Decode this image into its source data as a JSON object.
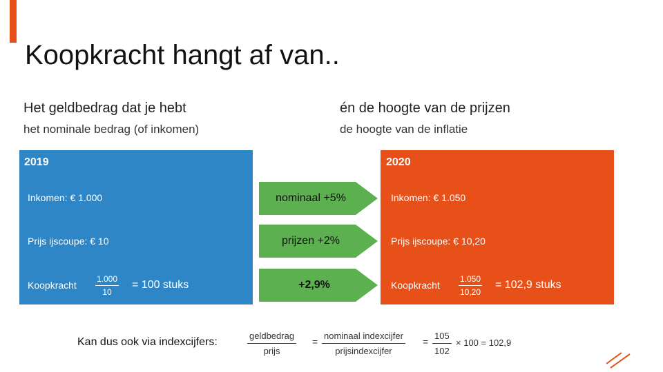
{
  "title": "Koopkracht hangt af van..",
  "left": {
    "heading": "Het geldbedrag dat je hebt",
    "subheading": "het nominale bedrag (of inkomen)"
  },
  "right": {
    "heading": "én de hoogte van de prijzen",
    "subheading": "de hoogte van de inflatie"
  },
  "box_2019": {
    "year": "2019",
    "income": "Inkomen: € 1.000",
    "price": "Prijs ijscoupe: € 10",
    "label": "Koopkracht",
    "numerator": "1.000",
    "denominator": "10",
    "result": "= 100 stuks"
  },
  "arrows": [
    "nominaal +5%",
    "prijzen +2%",
    "+2,9%"
  ],
  "box_2020": {
    "year": "2020",
    "income": "Inkomen: € 1.050",
    "price": "Prijs ijscoupe: € 10,20",
    "label": "Koopkracht",
    "numerator": "1.050",
    "denominator": "10,20",
    "result": "= 102,9 stuks"
  },
  "formula": {
    "label": "Kan dus ook via indexcijfers:",
    "f1_num": "geldbedrag",
    "f1_den": "prijs",
    "eq1": "=",
    "f2_num": "nominaal indexcijfer",
    "f2_den": "prijsindexcijfer",
    "eq2": "=",
    "f3_num": "105",
    "f3_den": "102",
    "tail": "× 100 = 102,9"
  }
}
